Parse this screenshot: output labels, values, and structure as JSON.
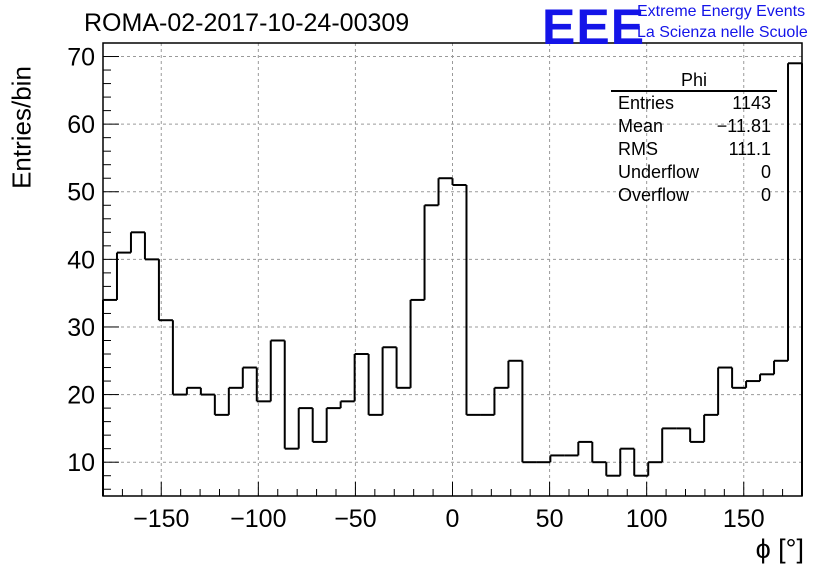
{
  "header": {
    "run_title": "ROMA-02-2017-10-24-00309",
    "logo_text": "EEE",
    "logo_line1": "Extreme Energy Events",
    "logo_line2": "La Scienza nelle Scuole",
    "logo_color": "#1414e8"
  },
  "stats_box": {
    "title": "Phi",
    "rows": [
      {
        "label": "Entries",
        "value": "1143"
      },
      {
        "label": "Mean",
        "value": "−11.81"
      },
      {
        "label": "RMS",
        "value": "111.1"
      },
      {
        "label": "Underflow",
        "value": "0"
      },
      {
        "label": "Overflow",
        "value": "0"
      }
    ]
  },
  "chart_data": {
    "type": "bar",
    "title": "ROMA-02-2017-10-24-00309",
    "xlabel": "ϕ [°]",
    "ylabel": "Entries/bin",
    "xlim": [
      -180,
      180
    ],
    "ylim": [
      5,
      72
    ],
    "bin_width": 7.2,
    "grid": true,
    "xticks": [
      -150,
      -100,
      -50,
      0,
      50,
      100,
      150
    ],
    "xtick_labels": [
      "−150",
      "−100",
      "−50",
      "0",
      "50",
      "100",
      "150"
    ],
    "yticks": [
      10,
      20,
      30,
      40,
      50,
      60,
      70
    ],
    "ytick_labels": [
      "10",
      "20",
      "30",
      "40",
      "50",
      "60",
      "70"
    ],
    "series": [
      {
        "values": [
          34,
          41,
          44,
          40,
          31,
          20,
          21,
          20,
          17,
          21,
          24,
          19,
          28,
          12,
          18,
          13,
          18,
          19,
          26,
          17,
          27,
          21,
          34,
          48,
          52,
          51,
          17,
          17,
          21,
          25,
          10,
          10,
          11,
          11,
          13,
          10,
          8,
          12,
          8,
          10,
          15,
          15,
          13,
          17,
          24,
          21,
          22,
          23,
          25,
          69
        ],
        "color": "#000000"
      }
    ]
  }
}
